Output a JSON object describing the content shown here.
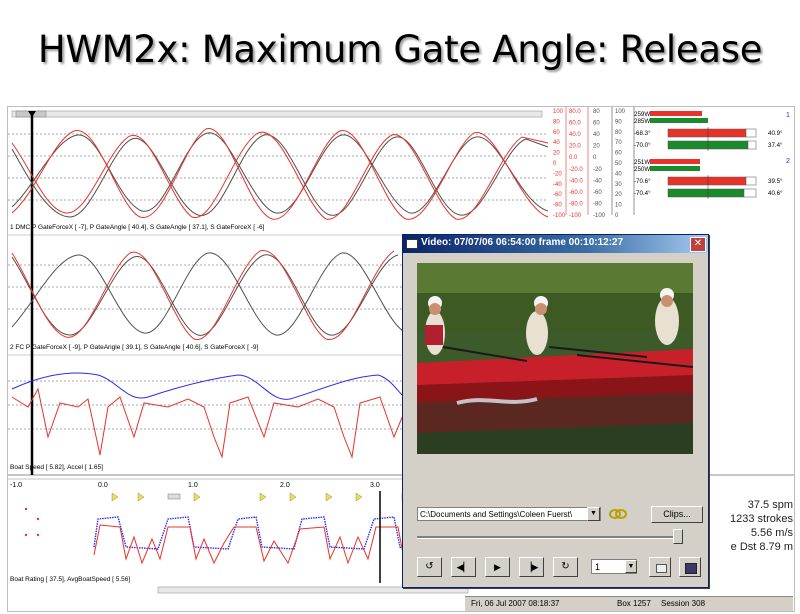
{
  "slide": {
    "title": "HWM2x: Maximum Gate Angle: Release"
  },
  "panel1": {
    "label": "1 DMC P GateForceX [    -7], P GateAngle [    40.4], S GateAngle [    37.1], S GateForceX [    -6]"
  },
  "panel2": {
    "label": "2 FC P GateForceX [    -9], P GateAngle [    39.1], S GateAngle [    40.6], S GateForceX [    -9]"
  },
  "panel3": {
    "label": "Boat Speed [    5.82], Accel [    1.65]"
  },
  "panel4": {
    "label": "Boat Rating [    37.5], AvgBoatSpeed [    5.56]"
  },
  "time_axis": {
    "ticks": [
      "-1.0",
      "0.0",
      "1.0",
      "2.0",
      "3.0"
    ]
  },
  "scales": {
    "col1": [
      "100",
      "80",
      "60",
      "40",
      "20",
      "0",
      "-20",
      "-40",
      "-60",
      "-80",
      "-100"
    ],
    "col2": [
      "80.0",
      "60.0",
      "40.0",
      "20.0",
      "0.0",
      "-20.0",
      "-40.0",
      "-60.0",
      "-80.0",
      "-100"
    ],
    "col3": [
      "80",
      "60",
      "40",
      "20",
      "0",
      "-20",
      "-40",
      "-60",
      "-80",
      "-100"
    ],
    "col4": [
      "100",
      "90",
      "80",
      "70",
      "60",
      "50",
      "40",
      "30",
      "20",
      "10",
      "0"
    ]
  },
  "bars": {
    "rower1": {
      "num": "1",
      "w1": "259W",
      "w2": "285W",
      "a1": "-68.3°",
      "a2": "-70.0°",
      "v1": "40.9°",
      "v2": "37.4°"
    },
    "rower2": {
      "num": "2",
      "w1": "251W",
      "w2": "250W",
      "a1": "-70.6°",
      "a2": "-70.4°",
      "v1": "39.5°",
      "v2": "40.6°"
    }
  },
  "video": {
    "title": "Video: 07/07/06 06:54:00 frame  00:10:12:27",
    "path": "C:\\Documents and Settings\\Coleen Fuerst\\",
    "clips_label": "Clips...",
    "speed_value": "1"
  },
  "stats": {
    "rate": "37.5 spm",
    "strokes": "1233 strokes",
    "speed": "5.56 m/s",
    "distance": "e Dst 8.79 m"
  },
  "status": {
    "date": "Fri, 06 Jul 2007 08:18:37",
    "box": "Box 1257",
    "session": "Session 308"
  },
  "colors": {
    "red": "#e8332a",
    "dark": "#505050",
    "blue": "#2a2af0",
    "green": "#1a8a2a",
    "title_blue": "#0a246a"
  }
}
